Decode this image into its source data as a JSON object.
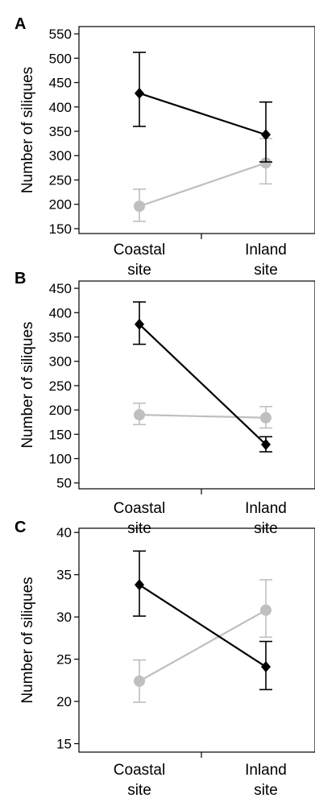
{
  "chart_data": [
    {
      "type": "line",
      "panel_label": "A",
      "ylabel": "Number of siliques",
      "categories": [
        "Coastal\nsite",
        "Inland\nsite"
      ],
      "yticks": [
        150,
        200,
        250,
        300,
        350,
        400,
        450,
        500,
        550
      ],
      "ylim": [
        140,
        565
      ],
      "series": [
        {
          "color": "#000000",
          "marker": "diamond",
          "values": [
            428,
            343
          ],
          "err_low": [
            360,
            287
          ],
          "err_high": [
            512,
            410
          ]
        },
        {
          "color": "#bfbfbf",
          "marker": "circle",
          "values": [
            196,
            285
          ],
          "err_low": [
            165,
            242
          ],
          "err_high": [
            231,
            335
          ]
        }
      ]
    },
    {
      "type": "line",
      "panel_label": "B",
      "ylabel": "Number of siliques",
      "categories": [
        "Coastal\nsite",
        "Inland\nsite"
      ],
      "yticks": [
        50,
        100,
        150,
        200,
        250,
        300,
        350,
        400,
        450
      ],
      "ylim": [
        38,
        465
      ],
      "series": [
        {
          "color": "#000000",
          "marker": "diamond",
          "values": [
            376,
            129
          ],
          "err_low": [
            335,
            114
          ],
          "err_high": [
            422,
            145
          ]
        },
        {
          "color": "#bfbfbf",
          "marker": "circle",
          "values": [
            190,
            184
          ],
          "err_low": [
            170,
            163
          ],
          "err_high": [
            214,
            207
          ]
        }
      ]
    },
    {
      "type": "line",
      "panel_label": "C",
      "ylabel": "Number of siliques",
      "categories": [
        "Coastal\nsite",
        "Inland\nsite"
      ],
      "yticks": [
        15,
        20,
        25,
        30,
        35,
        40
      ],
      "ylim": [
        14,
        40.5
      ],
      "series": [
        {
          "color": "#000000",
          "marker": "diamond",
          "values": [
            33.8,
            24.1
          ],
          "err_low": [
            30.1,
            21.4
          ],
          "err_high": [
            37.8,
            27.1
          ]
        },
        {
          "color": "#bfbfbf",
          "marker": "circle",
          "values": [
            22.4,
            30.8
          ],
          "err_low": [
            19.9,
            27.6
          ],
          "err_high": [
            24.9,
            34.4
          ]
        }
      ]
    }
  ]
}
